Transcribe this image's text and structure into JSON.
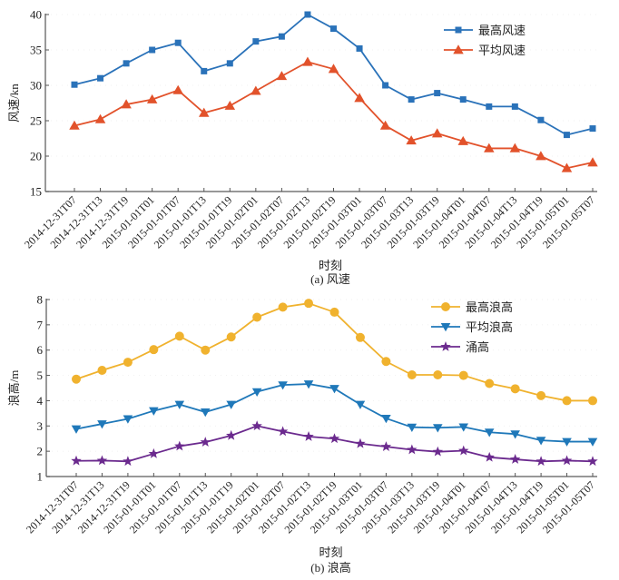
{
  "chart_data": [
    {
      "type": "line",
      "caption": "(a) 风速",
      "xlabel": "时刻",
      "ylabel": "风速/kn",
      "ylim": [
        15,
        40
      ],
      "yticks": [
        15,
        20,
        25,
        30,
        35,
        40
      ],
      "grid": false,
      "legend_position": "top-right",
      "categories": [
        "2014-12-31T07",
        "2014-12-31T13",
        "2014-12-31T19",
        "2015-01-01T01",
        "2015-01-01T07",
        "2015-01-01T13",
        "2015-01-01T19",
        "2015-01-02T01",
        "2015-01-02T07",
        "2015-01-02T13",
        "2015-01-02T19",
        "2015-01-03T01",
        "2015-01-03T07",
        "2015-01-03T13",
        "2015-01-03T19",
        "2015-01-04T01",
        "2015-01-04T07",
        "2015-01-04T13",
        "2015-01-04T19",
        "2015-01-05T01",
        "2015-01-05T07"
      ],
      "series": [
        {
          "name": "最高风速",
          "color": "#2a72b9",
          "marker": "square",
          "values": [
            30.1,
            31.0,
            33.1,
            35.0,
            36.0,
            32.0,
            33.1,
            36.2,
            36.9,
            40.0,
            38.0,
            35.2,
            30.0,
            28.0,
            28.9,
            28.0,
            27.0,
            27.0,
            25.1,
            23.0,
            23.9
          ]
        },
        {
          "name": "平均风速",
          "color": "#e2522b",
          "marker": "triangle-up",
          "values": [
            24.3,
            25.2,
            27.3,
            28.0,
            29.3,
            26.1,
            27.1,
            29.2,
            31.3,
            33.3,
            32.3,
            28.2,
            24.3,
            22.2,
            23.2,
            22.1,
            21.1,
            21.1,
            20.0,
            18.3,
            19.1
          ]
        }
      ]
    },
    {
      "type": "line",
      "caption": "(b) 浪高",
      "xlabel": "时刻",
      "ylabel": "浪高/m",
      "ylim": [
        1,
        8
      ],
      "yticks": [
        1,
        2,
        3,
        4,
        5,
        6,
        7,
        8
      ],
      "grid": false,
      "legend_position": "top-right",
      "categories": [
        "2014-12-31T07",
        "2014-12-31T13",
        "2014-12-31T19",
        "2015-01-01T01",
        "2015-01-01T07",
        "2015-01-01T13",
        "2015-01-01T19",
        "2015-01-02T01",
        "2015-01-02T07",
        "2015-01-02T13",
        "2015-01-02T19",
        "2015-01-03T01",
        "2015-01-03T07",
        "2015-01-03T13",
        "2015-01-03T19",
        "2015-01-04T01",
        "2015-01-04T07",
        "2015-01-04T13",
        "2015-01-04T19",
        "2015-01-05T01",
        "2015-01-05T07"
      ],
      "series": [
        {
          "name": "最高浪高",
          "color": "#f0b22e",
          "marker": "circle",
          "values": [
            4.85,
            5.2,
            5.52,
            6.02,
            6.55,
            6.0,
            6.52,
            7.3,
            7.7,
            7.85,
            7.5,
            6.5,
            5.55,
            5.02,
            5.02,
            5.0,
            4.68,
            4.47,
            4.2,
            4.0,
            4.0
          ]
        },
        {
          "name": "平均浪高",
          "color": "#1f78b9",
          "marker": "triangle-down",
          "values": [
            2.88,
            3.08,
            3.28,
            3.6,
            3.85,
            3.55,
            3.85,
            4.35,
            4.62,
            4.66,
            4.48,
            3.85,
            3.3,
            2.95,
            2.93,
            2.96,
            2.75,
            2.68,
            2.43,
            2.38,
            2.38
          ]
        },
        {
          "name": "涌高",
          "color": "#6b2a8e",
          "marker": "star",
          "values": [
            1.62,
            1.63,
            1.6,
            1.9,
            2.2,
            2.36,
            2.62,
            3.0,
            2.78,
            2.58,
            2.5,
            2.3,
            2.18,
            2.06,
            1.98,
            2.02,
            1.76,
            1.68,
            1.6,
            1.63,
            1.6
          ]
        }
      ]
    }
  ]
}
